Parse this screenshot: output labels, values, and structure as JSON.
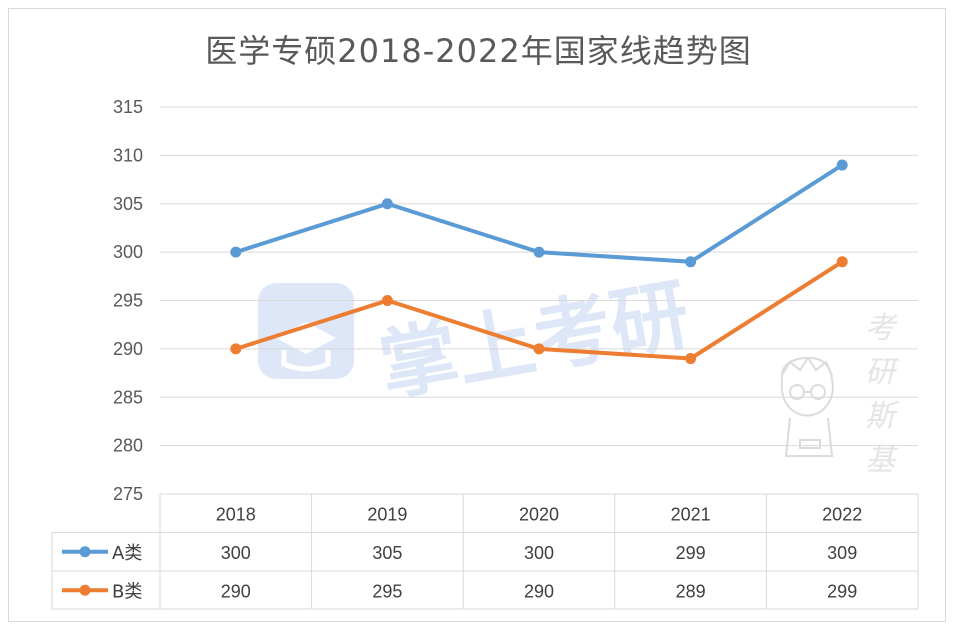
{
  "chart_data": {
    "type": "line",
    "title": "医学专硕2018-2022年国家线趋势图",
    "categories": [
      "2018",
      "2019",
      "2020",
      "2021",
      "2022"
    ],
    "series": [
      {
        "name": "A类",
        "values": [
          300,
          305,
          300,
          299,
          309
        ],
        "color": "#5b9bd5"
      },
      {
        "name": "B类",
        "values": [
          290,
          295,
          290,
          289,
          299
        ],
        "color": "#ed7d31"
      }
    ],
    "ylim": [
      275,
      315
    ],
    "yticks": [
      "315",
      "310",
      "305",
      "300",
      "295",
      "290",
      "285",
      "280",
      "275"
    ],
    "grid": true,
    "legend": "data-table",
    "data_table": true
  },
  "watermarks": {
    "center_brand": "掌上考研",
    "side_text": [
      "考",
      "研",
      "斯",
      "基"
    ]
  }
}
